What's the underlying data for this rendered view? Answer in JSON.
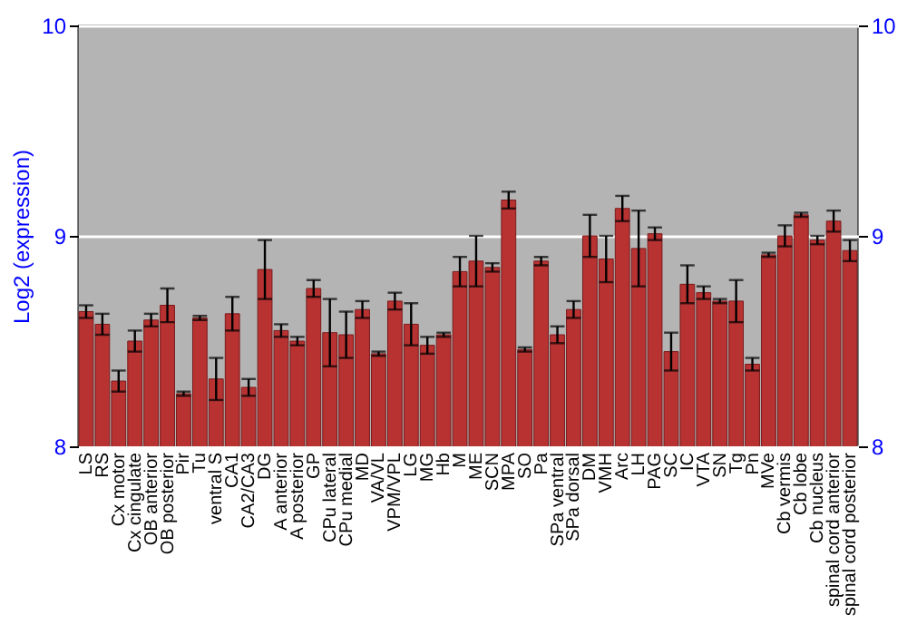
{
  "chart_data": {
    "type": "bar",
    "ylabel": "Log2 (expression)",
    "categories": [
      "LS",
      "RS",
      "Cx motor",
      "Cx cingulate",
      "OB anterior",
      "OB posterior",
      "Pir",
      "Tu",
      "ventral S",
      "CA1",
      "CA2/CA3",
      "DG",
      "A anterior",
      "A posterior",
      "GP",
      "CPu lateral",
      "CPu medial",
      "MD",
      "VA/VL",
      "VPM/VPL",
      "LG",
      "MG",
      "Hb",
      "M",
      "ME",
      "SCN",
      "MPA",
      "SO",
      "Pa",
      "SPa ventral",
      "SPa dorsal",
      "DM",
      "VMH",
      "Arc",
      "LH",
      "PAG",
      "SC",
      "IC",
      "VTA",
      "SN",
      "Tg",
      "Pn",
      "MVe",
      "Cb vermis",
      "Cb lobe",
      "Cb nucleus",
      "spinal cord anterior",
      "spinal cord posterior"
    ],
    "values": [
      8.64,
      8.58,
      8.31,
      8.5,
      8.6,
      8.67,
      8.25,
      8.61,
      8.32,
      8.63,
      8.28,
      8.84,
      8.55,
      8.5,
      8.75,
      8.54,
      8.53,
      8.65,
      8.44,
      8.69,
      8.58,
      8.48,
      8.53,
      8.83,
      8.88,
      8.85,
      9.17,
      8.46,
      8.88,
      8.53,
      8.65,
      9.0,
      8.89,
      9.13,
      8.94,
      9.01,
      8.45,
      8.77,
      8.73,
      8.69,
      8.69,
      8.39,
      8.91,
      9.0,
      9.1,
      8.98,
      9.07,
      8.93
    ],
    "errors": [
      0.03,
      0.05,
      0.05,
      0.05,
      0.03,
      0.08,
      0.01,
      0.01,
      0.1,
      0.08,
      0.04,
      0.14,
      0.03,
      0.02,
      0.04,
      0.16,
      0.11,
      0.04,
      0.01,
      0.04,
      0.1,
      0.04,
      0.01,
      0.07,
      0.12,
      0.02,
      0.04,
      0.01,
      0.02,
      0.04,
      0.04,
      0.1,
      0.11,
      0.06,
      0.18,
      0.03,
      0.09,
      0.09,
      0.03,
      0.01,
      0.1,
      0.03,
      0.01,
      0.05,
      0.01,
      0.02,
      0.05,
      0.05
    ],
    "color": "#b83232",
    "ylim": [
      8,
      10
    ],
    "yticks": [
      8,
      9,
      10
    ],
    "y2lim": [
      8,
      10
    ],
    "y2ticks": [
      8,
      9,
      10
    ],
    "grid": "y"
  }
}
